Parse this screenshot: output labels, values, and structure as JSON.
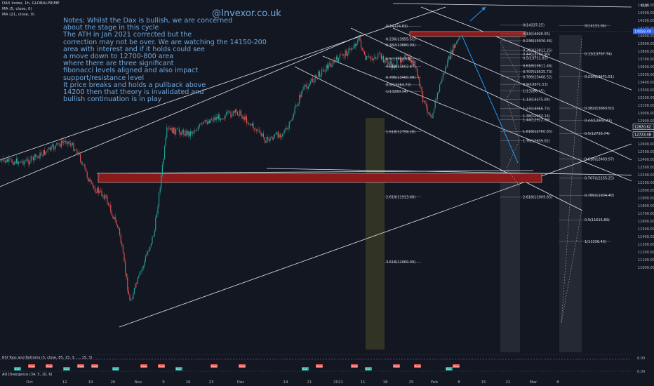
{
  "header": {
    "symbol": "DAX Index, 1h, GLOBALPRIME",
    "ma1": "MA (5, close, 0)",
    "ma2": "MA (21, close, 0)"
  },
  "currency": "EUR",
  "handle": "@Invexor.co.uk",
  "note_lines": [
    "Notes; Whilst the Dax is bullish, we are concerned",
    "about the stage in this cycle",
    "The ATH in Jan 2021 corrected but the",
    "correction may not be over. We are watching the 14150-200",
    "area with interest and if it holds could see",
    "a move down to 12700-800 area",
    "where there are three significant",
    "fibonacci levels aligned and also impact",
    "support/resistance level",
    "It price breaks and holds a pullback above",
    "14200 then that theory is invalidated and",
    "bullish continuation is in play"
  ],
  "y_axis": {
    "min": 11000,
    "max": 14900,
    "step": 100,
    "price_tags": [
      {
        "label": "14058.49",
        "value": 14058.49,
        "color": "#2962ff"
      },
      {
        "label": "12820.62",
        "value": 12820.62,
        "color": "#ffffff"
      },
      {
        "label": "12723.48",
        "value": 12723.48,
        "color": "#ffffff"
      }
    ]
  },
  "x_axis": {
    "labels": [
      "Oct",
      "12",
      "19",
      "26",
      "Nov",
      "9",
      "16",
      "23",
      "Dec",
      "14",
      "21",
      "2021",
      "11",
      "18",
      "25",
      "Feb",
      "8",
      "15",
      "22",
      "Mar",
      "8"
    ]
  },
  "fib_left": {
    "levels": [
      {
        "label": "0(14124.83)",
        "value": 14124.83
      },
      {
        "label": "0.236(13955.51)",
        "value": 13955.51
      },
      {
        "label": "0.382(13880.99)",
        "value": 13880.99
      },
      {
        "label": "0.5(13702.53)",
        "value": 13702.53
      },
      {
        "label": "0.618(13602.87)",
        "value": 13602.87
      },
      {
        "label": "0.786(13460.98)",
        "value": 13460.98
      },
      {
        "label": "0.9(13364.70)",
        "value": 13364.7
      },
      {
        "label": "1(13280.34)",
        "value": 13280.34
      },
      {
        "label": "1.618(12758.28)",
        "value": 12758.28
      },
      {
        "label": "2.618(11913.68)",
        "value": 11913.68
      },
      {
        "label": "3.618(11069.09)",
        "value": 11069.09
      }
    ]
  },
  "fib_mid": {
    "levels": [
      {
        "label": "0(14137.25)",
        "value": 14137.25
      },
      {
        "label": "0.13(14026.65)",
        "value": 14026.65
      },
      {
        "label": "0.236(13936.46)",
        "value": 13936.46
      },
      {
        "label": "0.382(13812.25)",
        "value": 13812.25
      },
      {
        "label": "0.44(13762.90)",
        "value": 13762.9
      },
      {
        "label": "0.5(13711.85)",
        "value": 13711.85
      },
      {
        "label": "0.618(13611.46)",
        "value": 13611.46
      },
      {
        "label": "0.707(13535.73)",
        "value": 13535.73
      },
      {
        "label": "0.786(13468.52)",
        "value": 13468.52
      },
      {
        "label": "0.9(13371.53)",
        "value": 13371.53
      },
      {
        "label": "1(13286.45)",
        "value": 13286.45
      },
      {
        "label": "1.13(13175.84)",
        "value": 13175.84
      },
      {
        "label": "1.27(13056.73)",
        "value": 13056.73
      },
      {
        "label": "1.38(12963.14)",
        "value": 12963.14
      },
      {
        "label": "1.44(12912.09)",
        "value": 12912.09
      },
      {
        "label": "1.618(12760.65)",
        "value": 12760.65
      },
      {
        "label": "1.76(12639.82)",
        "value": 12639.82
      },
      {
        "label": "2.618(11909.85)",
        "value": 11909.85
      }
    ]
  },
  "fib_right": {
    "levels": [
      {
        "label": "0(14131.04)",
        "value": 14131.04
      },
      {
        "label": "0.13(13767.74)",
        "value": 13767.74
      },
      {
        "label": "0.236(13471.51)",
        "value": 13471.51
      },
      {
        "label": "0.382(13063.50)",
        "value": 13063.5
      },
      {
        "label": "0.44(12901.41)",
        "value": 12901.41
      },
      {
        "label": "0.5(12733.74)",
        "value": 12733.74
      },
      {
        "label": "0.618(12403.97)",
        "value": 12403.97
      },
      {
        "label": "0.707(12155.25)",
        "value": 12155.25
      },
      {
        "label": "0.786(11934.48)",
        "value": 11934.48
      },
      {
        "label": "0.9(11615.89)",
        "value": 11615.89
      },
      {
        "label": "1(11336.43)",
        "value": 11336.43
      }
    ]
  },
  "indicators": {
    "ind1": "RSI Tops and Bottoms (5, close, 85, 15, 3, ..., 15, 3)",
    "ind2": "AO Divergence (34, 5, 10, 6)",
    "val1": "0.00",
    "val2": "0.00"
  },
  "badges": {
    "bear": "Bear",
    "bull": "Bull"
  },
  "colors": {
    "background": "#131722",
    "up": "#26a69a",
    "down": "#ef5350",
    "note": "#6fa8dc",
    "zone": "#8b1a1a"
  }
}
